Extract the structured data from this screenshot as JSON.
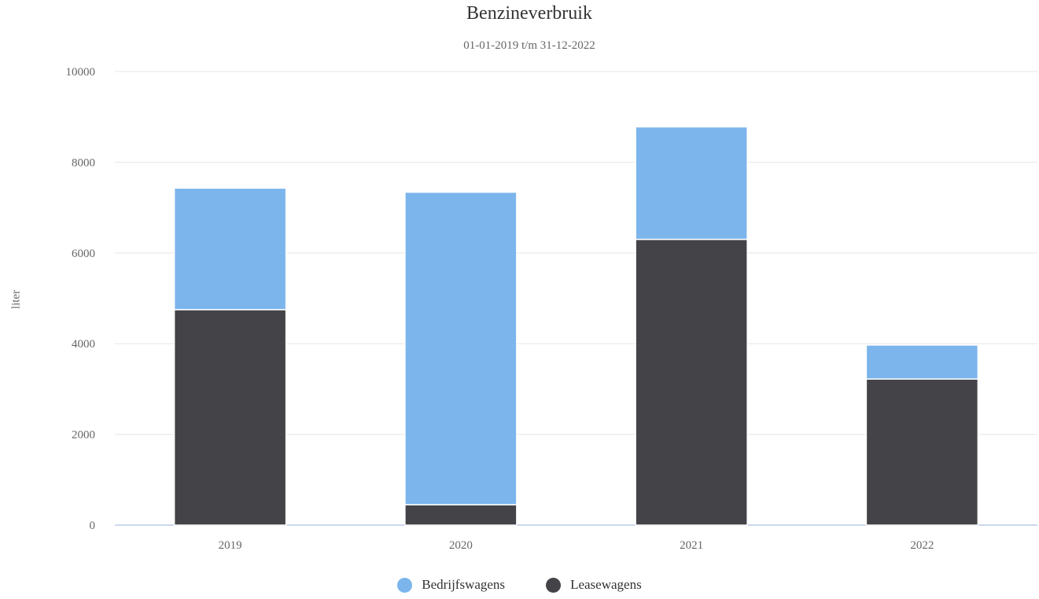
{
  "chart_data": {
    "type": "bar",
    "stacked": true,
    "title": "Benzineverbruik",
    "subtitle": "01-01-2019 t/m 31-12-2022",
    "ylabel": "liter",
    "xlabel": "",
    "categories": [
      "2019",
      "2020",
      "2021",
      "2022"
    ],
    "ylim": [
      0,
      10000
    ],
    "yticks": [
      "0",
      "2000",
      "4000",
      "6000",
      "8000",
      "10000"
    ],
    "grid": true,
    "legend_position": "bottom-center",
    "series": [
      {
        "name": "Leasewagens",
        "color": "#434348",
        "values": [
          4750,
          450,
          6300,
          3220
        ]
      },
      {
        "name": "Bedrijfswagens",
        "color": "#7cb5ec",
        "values": [
          2680,
          6890,
          2480,
          750
        ]
      }
    ]
  },
  "legend": {
    "items": [
      {
        "label": "Bedrijfswagens",
        "color": "#7cb5ec"
      },
      {
        "label": "Leasewagens",
        "color": "#434348"
      }
    ]
  }
}
